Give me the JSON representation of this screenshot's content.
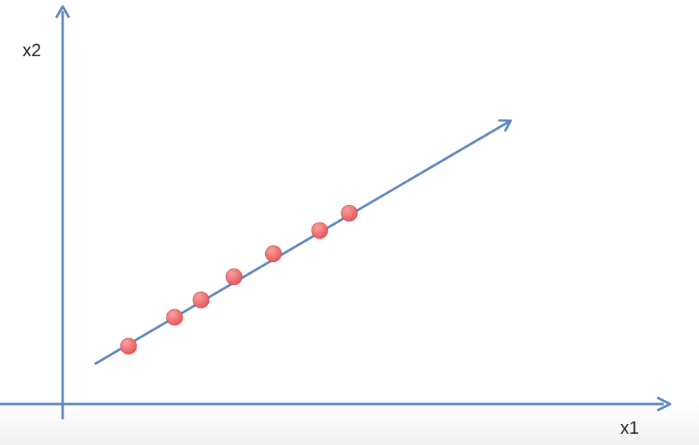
{
  "chart_data": {
    "type": "scatter",
    "xlabel": "x1",
    "ylabel": "x2",
    "points": [
      {
        "x": 1.0,
        "y": 1.0
      },
      {
        "x": 1.7,
        "y": 1.5
      },
      {
        "x": 2.1,
        "y": 1.8
      },
      {
        "x": 2.6,
        "y": 2.2
      },
      {
        "x": 3.2,
        "y": 2.6
      },
      {
        "x": 3.9,
        "y": 3.0
      },
      {
        "x": 4.35,
        "y": 3.3
      }
    ],
    "direction_line": {
      "from": {
        "x": 0.5,
        "y": 0.7
      },
      "to": {
        "x": 6.8,
        "y": 4.9
      }
    },
    "xlim": [
      -1.5,
      9.8
    ],
    "ylim": [
      -1.5,
      6.7
    ],
    "colors": {
      "axis": "#5b86c0",
      "line": "#5b86c0",
      "point": "#e8595b",
      "point_highlight": "#f7a2a2"
    }
  }
}
